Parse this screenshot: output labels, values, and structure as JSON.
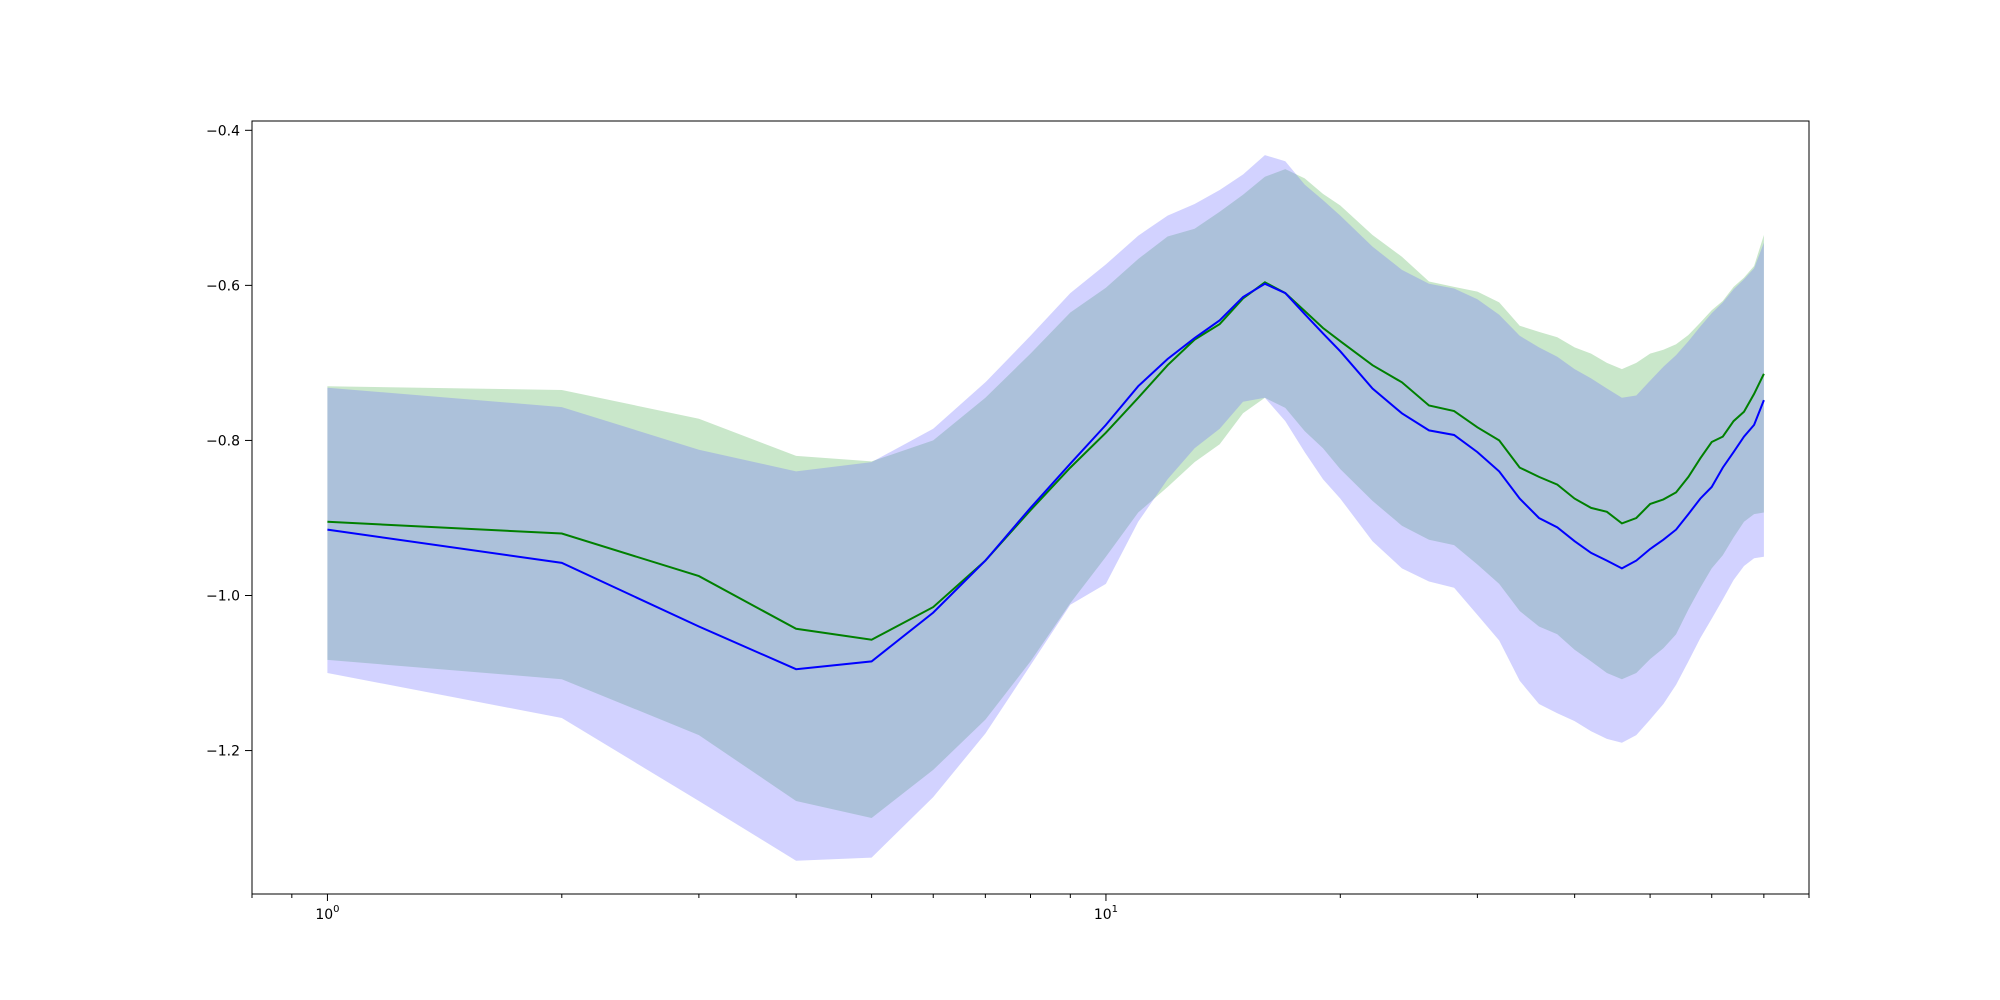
{
  "chart_data": {
    "type": "line",
    "title": "",
    "xlabel": "",
    "ylabel": "",
    "x_scale": "log",
    "xlim": [
      0.8,
      80
    ],
    "ylim": [
      -1.385,
      -0.388
    ],
    "grid": false,
    "legend": "none",
    "x_ticks": [
      {
        "value": 1,
        "base": "10",
        "exp": "0"
      },
      {
        "value": 10,
        "base": "10",
        "exp": "1"
      }
    ],
    "y_ticks": [
      {
        "value": -0.4,
        "label": "−0.4"
      },
      {
        "value": -0.6,
        "label": "−0.6"
      },
      {
        "value": -0.8,
        "label": "−0.8"
      },
      {
        "value": -1.0,
        "label": "−1.0"
      },
      {
        "value": -1.2,
        "label": "−1.2"
      }
    ],
    "series": [
      {
        "color": "#008000",
        "band_color": "#4caf50",
        "x": [
          1,
          2,
          3,
          4,
          5,
          6,
          7,
          8,
          9,
          10,
          11,
          12,
          13,
          14,
          15,
          16,
          17,
          18,
          19,
          20,
          22,
          24,
          26,
          28,
          30,
          32,
          34,
          36,
          38,
          40,
          42,
          44,
          46,
          48,
          50,
          52,
          54,
          56,
          58,
          60,
          62,
          64,
          66,
          68,
          70
        ],
        "values": [
          -0.905,
          -0.92,
          -0.975,
          -1.043,
          -1.057,
          -1.015,
          -0.955,
          -0.89,
          -0.835,
          -0.79,
          -0.745,
          -0.703,
          -0.67,
          -0.65,
          -0.617,
          -0.596,
          -0.61,
          -0.633,
          -0.655,
          -0.672,
          -0.703,
          -0.725,
          -0.755,
          -0.762,
          -0.783,
          -0.8,
          -0.835,
          -0.847,
          -0.857,
          -0.875,
          -0.887,
          -0.892,
          -0.907,
          -0.9,
          -0.882,
          -0.876,
          -0.867,
          -0.847,
          -0.823,
          -0.802,
          -0.795,
          -0.775,
          -0.763,
          -0.74,
          -0.714
        ],
        "upper": [
          -0.73,
          -0.735,
          -0.772,
          -0.82,
          -0.827,
          -0.8,
          -0.745,
          -0.688,
          -0.635,
          -0.603,
          -0.566,
          -0.537,
          -0.527,
          -0.505,
          -0.483,
          -0.46,
          -0.45,
          -0.462,
          -0.482,
          -0.497,
          -0.535,
          -0.563,
          -0.595,
          -0.602,
          -0.608,
          -0.622,
          -0.652,
          -0.66,
          -0.667,
          -0.68,
          -0.688,
          -0.7,
          -0.708,
          -0.7,
          -0.688,
          -0.683,
          -0.676,
          -0.664,
          -0.648,
          -0.632,
          -0.62,
          -0.602,
          -0.59,
          -0.575,
          -0.535
        ],
        "lower": [
          -1.083,
          -1.108,
          -1.18,
          -1.265,
          -1.287,
          -1.225,
          -1.16,
          -1.085,
          -1.01,
          -0.95,
          -0.893,
          -0.86,
          -0.828,
          -0.805,
          -0.765,
          -0.745,
          -0.758,
          -0.788,
          -0.81,
          -0.837,
          -0.878,
          -0.91,
          -0.928,
          -0.935,
          -0.96,
          -0.985,
          -1.02,
          -1.04,
          -1.05,
          -1.07,
          -1.085,
          -1.1,
          -1.108,
          -1.1,
          -1.082,
          -1.068,
          -1.05,
          -1.018,
          -0.99,
          -0.965,
          -0.948,
          -0.925,
          -0.905,
          -0.895,
          -0.893
        ]
      },
      {
        "color": "#0000ff",
        "band_color": "#6b6bff",
        "x": [
          1,
          2,
          3,
          4,
          5,
          6,
          7,
          8,
          9,
          10,
          11,
          12,
          13,
          14,
          15,
          16,
          17,
          18,
          19,
          20,
          22,
          24,
          26,
          28,
          30,
          32,
          34,
          36,
          38,
          40,
          42,
          44,
          46,
          48,
          50,
          52,
          54,
          56,
          58,
          60,
          62,
          64,
          66,
          68,
          70
        ],
        "values": [
          -0.915,
          -0.958,
          -1.04,
          -1.095,
          -1.085,
          -1.022,
          -0.955,
          -0.887,
          -0.83,
          -0.78,
          -0.73,
          -0.695,
          -0.668,
          -0.645,
          -0.615,
          -0.598,
          -0.61,
          -0.637,
          -0.662,
          -0.685,
          -0.733,
          -0.765,
          -0.787,
          -0.793,
          -0.815,
          -0.84,
          -0.875,
          -0.9,
          -0.912,
          -0.93,
          -0.945,
          -0.955,
          -0.965,
          -0.955,
          -0.94,
          -0.928,
          -0.915,
          -0.895,
          -0.875,
          -0.86,
          -0.835,
          -0.815,
          -0.795,
          -0.78,
          -0.748
        ],
        "upper": [
          -0.732,
          -0.757,
          -0.812,
          -0.84,
          -0.828,
          -0.785,
          -0.725,
          -0.665,
          -0.61,
          -0.573,
          -0.536,
          -0.51,
          -0.495,
          -0.477,
          -0.457,
          -0.432,
          -0.44,
          -0.47,
          -0.49,
          -0.51,
          -0.55,
          -0.58,
          -0.598,
          -0.604,
          -0.618,
          -0.638,
          -0.665,
          -0.68,
          -0.692,
          -0.708,
          -0.72,
          -0.733,
          -0.745,
          -0.742,
          -0.723,
          -0.705,
          -0.69,
          -0.672,
          -0.653,
          -0.636,
          -0.622,
          -0.605,
          -0.592,
          -0.578,
          -0.545
        ],
        "lower": [
          -1.1,
          -1.158,
          -1.265,
          -1.342,
          -1.338,
          -1.26,
          -1.178,
          -1.09,
          -1.012,
          -0.985,
          -0.905,
          -0.85,
          -0.81,
          -0.785,
          -0.75,
          -0.745,
          -0.775,
          -0.815,
          -0.85,
          -0.875,
          -0.93,
          -0.965,
          -0.982,
          -0.99,
          -1.025,
          -1.058,
          -1.11,
          -1.14,
          -1.152,
          -1.162,
          -1.175,
          -1.185,
          -1.19,
          -1.18,
          -1.16,
          -1.14,
          -1.115,
          -1.085,
          -1.055,
          -1.03,
          -1.005,
          -0.98,
          -0.962,
          -0.952,
          -0.95
        ]
      }
    ]
  }
}
